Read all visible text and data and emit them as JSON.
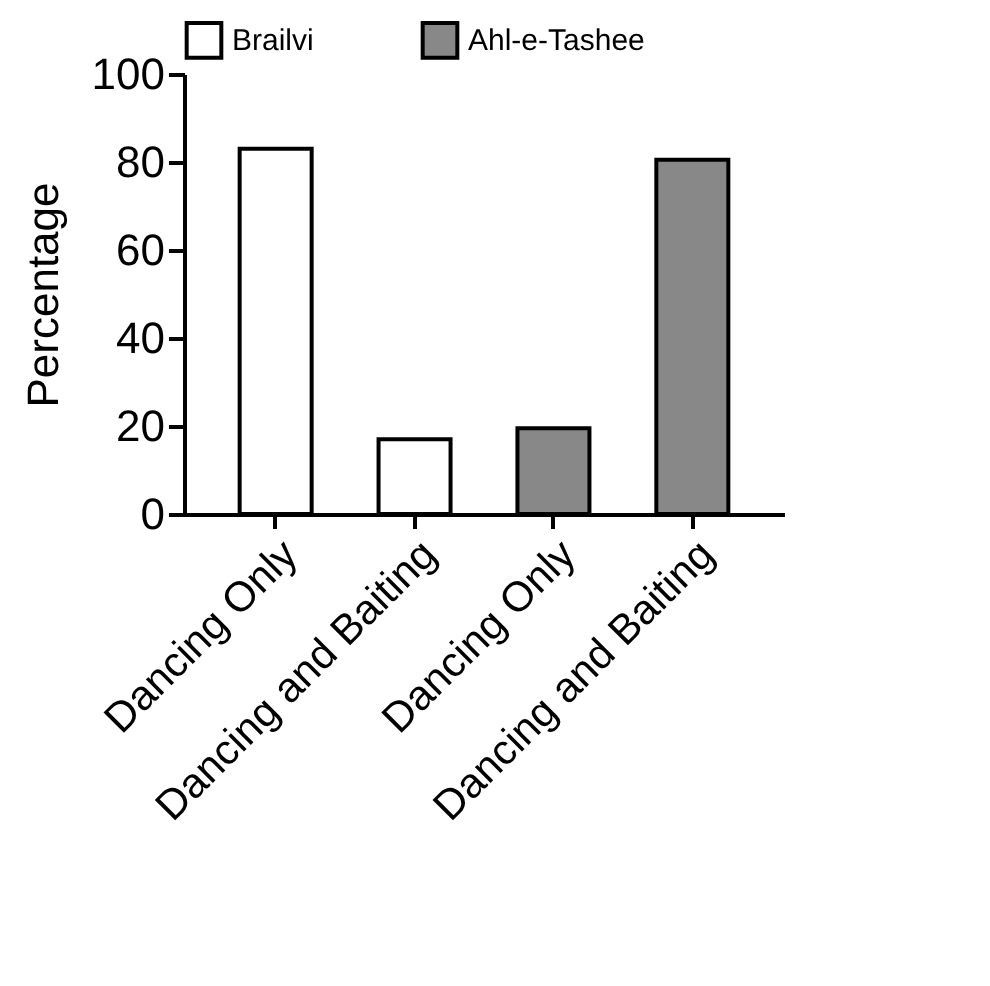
{
  "chart_data": {
    "type": "bar",
    "ylabel": "Percentage",
    "categories": [
      "Dancing  Only",
      "Dancing and Baiting",
      "Dancing  Only",
      "Dancing and Baiting"
    ],
    "series": [
      {
        "name": "Brailvi",
        "color": "#ffffff",
        "values": [
          83,
          17,
          null,
          null
        ]
      },
      {
        "name": "Ahl-e-Tashee",
        "color": "#888888",
        "values": [
          null,
          null,
          19.5,
          80.5
        ]
      }
    ],
    "ylim": [
      0,
      100
    ],
    "yticks": [
      0,
      20,
      40,
      60,
      80,
      100
    ],
    "grid": false,
    "legend": "top"
  }
}
